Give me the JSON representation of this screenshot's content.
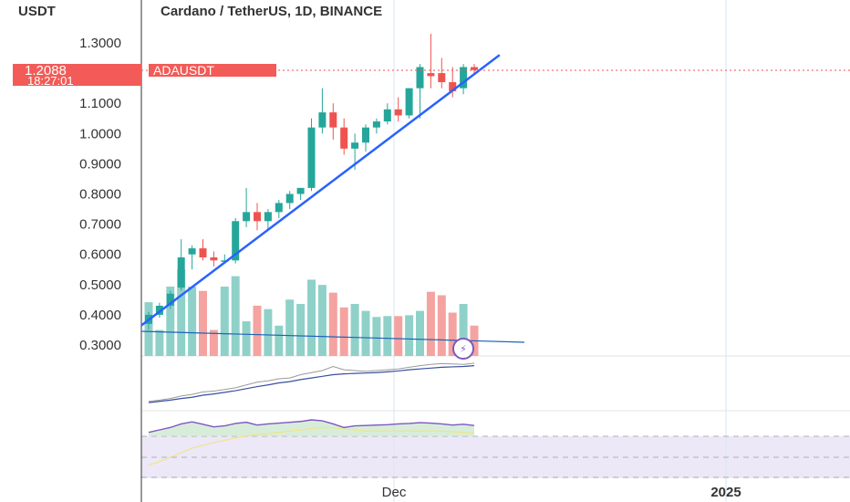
{
  "header": {
    "currency": "USDT",
    "title": "Cardano / TetherUS, 1D, BINANCE"
  },
  "price_tag": {
    "price": "1.2088",
    "countdown": "18:27:01",
    "symbol": "ADAUSDT"
  },
  "colors": {
    "up": "#26a69a",
    "down": "#ef5350",
    "up_volume": "#8fd1c9",
    "down_volume": "#f4a3a1",
    "trendline": "#2962ff",
    "price_line": "#ef5350",
    "label_bg": "#f25b57",
    "rsi_band": "#ece8f8",
    "rsi_line": "#7e57c2",
    "rsi_ma": "#f0e48a"
  },
  "chart_data": {
    "type": "candlestick",
    "title": "Cardano / TetherUS, 1D, BINANCE",
    "y_axis_ticks": [
      "1.3000",
      "1.1000",
      "1.0000",
      "0.9000",
      "0.8000",
      "0.7000",
      "0.6000",
      "0.5000",
      "0.4000",
      "0.3000"
    ],
    "ylim": [
      0.3,
      1.3
    ],
    "x_axis_labels": [
      "Dec",
      "2025"
    ],
    "candles": [
      {
        "o": 0.37,
        "h": 0.41,
        "l": 0.35,
        "c": 0.4
      },
      {
        "o": 0.4,
        "h": 0.44,
        "l": 0.39,
        "c": 0.43
      },
      {
        "o": 0.43,
        "h": 0.48,
        "l": 0.42,
        "c": 0.47
      },
      {
        "o": 0.49,
        "h": 0.65,
        "l": 0.48,
        "c": 0.59
      },
      {
        "o": 0.6,
        "h": 0.63,
        "l": 0.55,
        "c": 0.62
      },
      {
        "o": 0.62,
        "h": 0.65,
        "l": 0.58,
        "c": 0.59
      },
      {
        "o": 0.59,
        "h": 0.61,
        "l": 0.56,
        "c": 0.58
      },
      {
        "o": 0.58,
        "h": 0.6,
        "l": 0.57,
        "c": 0.58
      },
      {
        "o": 0.58,
        "h": 0.72,
        "l": 0.57,
        "c": 0.71
      },
      {
        "o": 0.71,
        "h": 0.82,
        "l": 0.69,
        "c": 0.74
      },
      {
        "o": 0.74,
        "h": 0.77,
        "l": 0.68,
        "c": 0.71
      },
      {
        "o": 0.71,
        "h": 0.75,
        "l": 0.68,
        "c": 0.74
      },
      {
        "o": 0.74,
        "h": 0.78,
        "l": 0.72,
        "c": 0.77
      },
      {
        "o": 0.77,
        "h": 0.81,
        "l": 0.75,
        "c": 0.8
      },
      {
        "o": 0.8,
        "h": 0.82,
        "l": 0.78,
        "c": 0.82
      },
      {
        "o": 0.82,
        "h": 1.05,
        "l": 0.81,
        "c": 1.02
      },
      {
        "o": 1.02,
        "h": 1.15,
        "l": 1.0,
        "c": 1.07
      },
      {
        "o": 1.07,
        "h": 1.1,
        "l": 0.98,
        "c": 1.02
      },
      {
        "o": 1.02,
        "h": 1.05,
        "l": 0.93,
        "c": 0.95
      },
      {
        "o": 0.95,
        "h": 1.0,
        "l": 0.88,
        "c": 0.97
      },
      {
        "o": 0.97,
        "h": 1.03,
        "l": 0.94,
        "c": 1.02
      },
      {
        "o": 1.02,
        "h": 1.05,
        "l": 1.0,
        "c": 1.04
      },
      {
        "o": 1.04,
        "h": 1.1,
        "l": 1.03,
        "c": 1.08
      },
      {
        "o": 1.08,
        "h": 1.12,
        "l": 1.04,
        "c": 1.06
      },
      {
        "o": 1.06,
        "h": 1.15,
        "l": 1.05,
        "c": 1.15
      },
      {
        "o": 1.15,
        "h": 1.23,
        "l": 1.05,
        "c": 1.22
      },
      {
        "o": 1.2,
        "h": 1.33,
        "l": 1.15,
        "c": 1.19
      },
      {
        "o": 1.2,
        "h": 1.25,
        "l": 1.15,
        "c": 1.17
      },
      {
        "o": 1.17,
        "h": 1.22,
        "l": 1.12,
        "c": 1.14
      },
      {
        "o": 1.15,
        "h": 1.23,
        "l": 1.13,
        "c": 1.22
      },
      {
        "o": 1.22,
        "h": 1.23,
        "l": 1.2,
        "c": 1.21
      }
    ],
    "volumes": [
      0.62,
      0.3,
      0.8,
      1.0,
      0.8,
      0.75,
      0.3,
      0.8,
      0.92,
      0.4,
      0.58,
      0.54,
      0.35,
      0.65,
      0.6,
      0.88,
      0.82,
      0.73,
      0.56,
      0.6,
      0.52,
      0.45,
      0.46,
      0.46,
      0.47,
      0.52,
      0.74,
      0.7,
      0.5,
      0.6,
      0.35
    ],
    "trendline": [
      {
        "i": 0,
        "v": 0.38
      },
      {
        "i": 32,
        "v": 1.26
      }
    ],
    "volume_ma_line": "declining moving average across volume pane",
    "pane2_lines": {
      "upper": [
        0.05,
        0.08,
        0.12,
        0.18,
        0.22,
        0.28,
        0.3,
        0.34,
        0.38,
        0.45,
        0.52,
        0.55,
        0.6,
        0.62,
        0.7,
        0.75,
        0.8,
        0.9,
        0.82,
        0.8,
        0.78,
        0.8,
        0.82,
        0.84,
        0.88,
        0.92,
        0.95,
        0.97,
        0.96,
        0.95,
        0.98
      ],
      "lower": [
        0.02,
        0.05,
        0.08,
        0.12,
        0.15,
        0.2,
        0.23,
        0.27,
        0.31,
        0.36,
        0.41,
        0.45,
        0.5,
        0.53,
        0.58,
        0.62,
        0.66,
        0.7,
        0.72,
        0.73,
        0.74,
        0.75,
        0.77,
        0.79,
        0.82,
        0.84,
        0.86,
        0.88,
        0.89,
        0.9,
        0.92
      ]
    },
    "rsi": {
      "values": [
        0.38,
        0.5,
        0.62,
        0.8,
        0.9,
        0.78,
        0.65,
        0.7,
        0.82,
        0.88,
        0.74,
        0.8,
        0.84,
        0.88,
        0.92,
        1.0,
        0.95,
        0.8,
        0.62,
        0.7,
        0.72,
        0.74,
        0.76,
        0.8,
        0.82,
        0.86,
        0.84,
        0.8,
        0.74,
        0.78,
        0.72
      ],
      "ma": [
        0.2,
        0.26,
        0.34,
        0.42,
        0.5,
        0.55,
        0.6,
        0.64,
        0.68,
        0.72,
        0.74,
        0.76,
        0.78,
        0.8,
        0.82,
        0.85,
        0.86,
        0.86,
        0.84,
        0.82,
        0.8,
        0.8,
        0.8,
        0.8,
        0.8,
        0.8,
        0.8,
        0.8,
        0.79,
        0.78,
        0.77
      ]
    }
  }
}
